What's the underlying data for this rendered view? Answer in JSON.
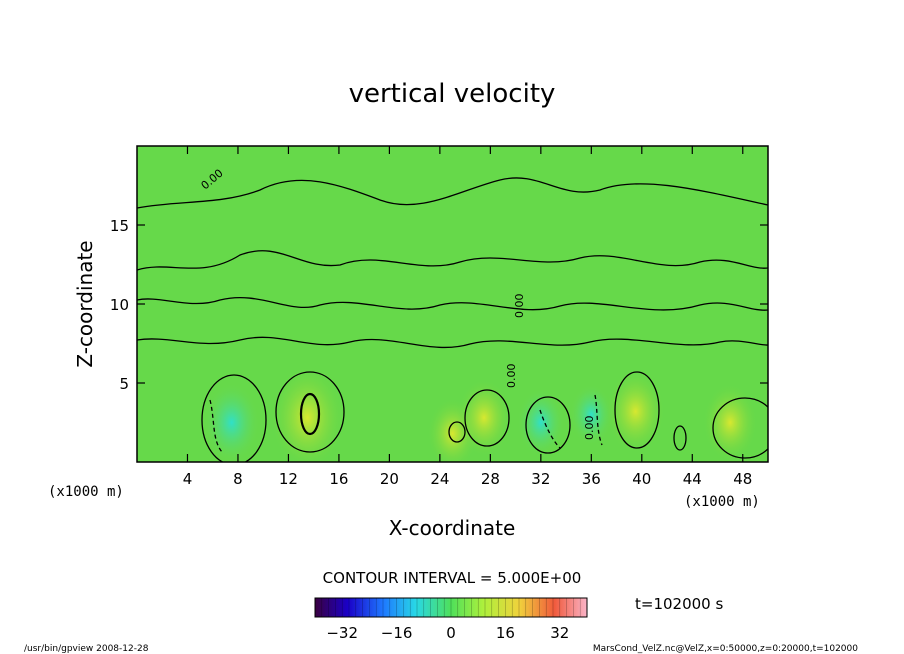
{
  "chart_data": {
    "type": "heatmap",
    "title": "vertical velocity",
    "xlabel": "X-coordinate",
    "ylabel": "Z-coordinate",
    "x_unit": "(x1000 m)",
    "xlim": [
      0,
      50
    ],
    "ylim": [
      0,
      20
    ],
    "x_ticks": [
      4,
      8,
      12,
      16,
      20,
      24,
      28,
      32,
      36,
      40,
      44,
      48
    ],
    "y_ticks": [
      5,
      10,
      15
    ],
    "colormap_ticks": [
      -32,
      -16,
      0,
      16,
      32
    ],
    "colormap_range": [
      -40,
      40
    ],
    "contour_interval_label": "CONTOUR INTERVAL = 5.000E+00",
    "contour_labels": [
      "0.00",
      "0.00",
      "0.00",
      "0.00"
    ],
    "time_label": "t=102000 s",
    "features": [
      {
        "x": 7.5,
        "z": 2.5,
        "value": -12
      },
      {
        "x": 13.5,
        "z": 2.8,
        "value": 18
      },
      {
        "x": 25.0,
        "z": 1.8,
        "value": 8
      },
      {
        "x": 27.5,
        "z": 2.8,
        "value": 10
      },
      {
        "x": 32.0,
        "z": 2.5,
        "value": -8
      },
      {
        "x": 36.0,
        "z": 3.0,
        "value": -6
      },
      {
        "x": 39.5,
        "z": 3.2,
        "value": 12
      },
      {
        "x": 47.0,
        "z": 2.5,
        "value": 10
      }
    ]
  },
  "footer": {
    "left": "/usr/bin/gpview   2008-12-28",
    "right": "MarsCond_VelZ.nc@VelZ,x=0:50000,z=0:20000,t=102000"
  },
  "colors": {
    "background_field": "#5fd84a",
    "positive": "#c8e63c",
    "negative": "#3cdcb4",
    "contour": "#000000"
  }
}
